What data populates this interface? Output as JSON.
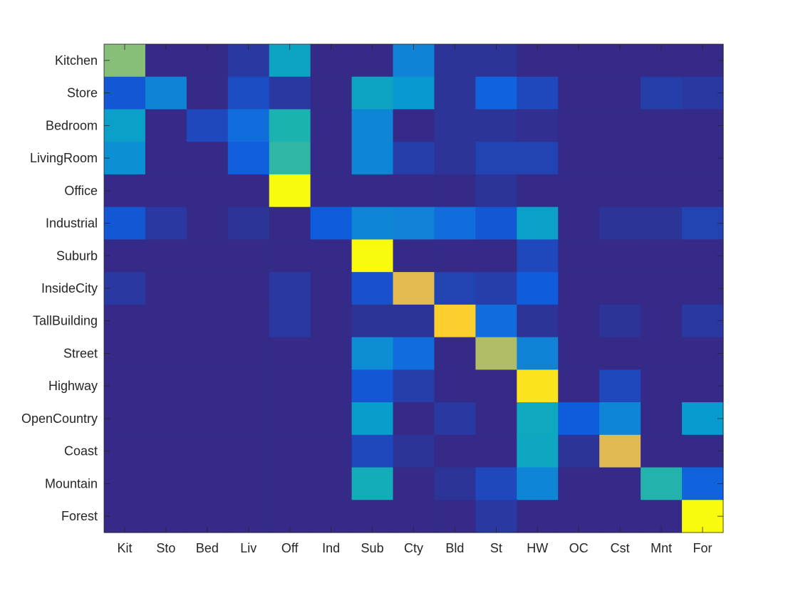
{
  "chart_data": {
    "type": "heatmap",
    "title": "",
    "xlabel": "",
    "ylabel": "",
    "row_labels": [
      "Kitchen",
      "Store",
      "Bedroom",
      "LivingRoom",
      "Office",
      "Industrial",
      "Suburb",
      "InsideCity",
      "TallBuilding",
      "Street",
      "Highway",
      "OpenCountry",
      "Coast",
      "Mountain",
      "Forest"
    ],
    "col_labels": [
      "Kit",
      "Sto",
      "Bed",
      "Liv",
      "Off",
      "Ind",
      "Sub",
      "Cty",
      "Bld",
      "St",
      "HW",
      "OC",
      "Cst",
      "Mnt",
      "For"
    ],
    "colormap": "parula",
    "value_range": [
      0,
      1
    ],
    "values": [
      [
        0.56,
        0.0,
        0.0,
        0.03,
        0.34,
        0.0,
        0.0,
        0.22,
        0.02,
        0.02,
        0.0,
        0.0,
        0.0,
        0.0,
        0.0
      ],
      [
        0.09,
        0.22,
        0.0,
        0.07,
        0.03,
        0.0,
        0.34,
        0.29,
        0.02,
        0.12,
        0.06,
        0.0,
        0.0,
        0.04,
        0.03
      ],
      [
        0.32,
        0.0,
        0.06,
        0.15,
        0.41,
        0.0,
        0.23,
        0.0,
        0.02,
        0.02,
        0.01,
        0.0,
        0.0,
        0.0,
        0.0
      ],
      [
        0.26,
        0.0,
        0.0,
        0.11,
        0.44,
        0.0,
        0.23,
        0.04,
        0.02,
        0.05,
        0.05,
        0.0,
        0.0,
        0.0,
        0.0
      ],
      [
        0.0,
        0.0,
        0.0,
        0.0,
        0.97,
        0.0,
        0.0,
        0.0,
        0.0,
        0.02,
        0.0,
        0.0,
        0.0,
        0.0,
        0.0
      ],
      [
        0.09,
        0.03,
        0.0,
        0.02,
        0.0,
        0.1,
        0.23,
        0.21,
        0.15,
        0.09,
        0.32,
        0.0,
        0.02,
        0.02,
        0.05
      ],
      [
        0.0,
        0.0,
        0.0,
        0.0,
        0.0,
        0.0,
        0.97,
        0.0,
        0.0,
        0.0,
        0.06,
        0.0,
        0.0,
        0.0,
        0.0
      ],
      [
        0.03,
        0.0,
        0.0,
        0.0,
        0.03,
        0.0,
        0.08,
        0.71,
        0.05,
        0.04,
        0.1,
        0.0,
        0.0,
        0.0,
        0.0
      ],
      [
        0.0,
        0.0,
        0.0,
        0.0,
        0.03,
        0.0,
        0.02,
        0.02,
        0.8,
        0.15,
        0.02,
        0.0,
        0.02,
        0.0,
        0.03
      ],
      [
        0.0,
        0.0,
        0.0,
        0.0,
        0.0,
        0.0,
        0.25,
        0.15,
        0.0,
        0.62,
        0.22,
        0.0,
        0.0,
        0.0,
        0.0
      ],
      [
        0.0,
        0.0,
        0.0,
        0.0,
        0.0,
        0.0,
        0.09,
        0.04,
        0.0,
        0.0,
        0.85,
        0.0,
        0.06,
        0.0,
        0.0
      ],
      [
        0.0,
        0.0,
        0.0,
        0.0,
        0.0,
        0.0,
        0.31,
        0.0,
        0.03,
        0.0,
        0.36,
        0.1,
        0.23,
        0.0,
        0.3
      ],
      [
        0.0,
        0.0,
        0.0,
        0.0,
        0.0,
        0.0,
        0.06,
        0.02,
        0.0,
        0.0,
        0.35,
        0.02,
        0.7,
        0.0,
        0.0
      ],
      [
        0.0,
        0.0,
        0.0,
        0.0,
        0.0,
        0.0,
        0.38,
        0.0,
        0.02,
        0.06,
        0.23,
        0.0,
        0.0,
        0.42,
        0.12
      ],
      [
        0.0,
        0.0,
        0.0,
        0.0,
        0.0,
        0.0,
        0.0,
        0.0,
        0.0,
        0.03,
        0.0,
        0.0,
        0.0,
        0.0,
        0.97
      ]
    ],
    "grid": false,
    "legend": "none"
  }
}
